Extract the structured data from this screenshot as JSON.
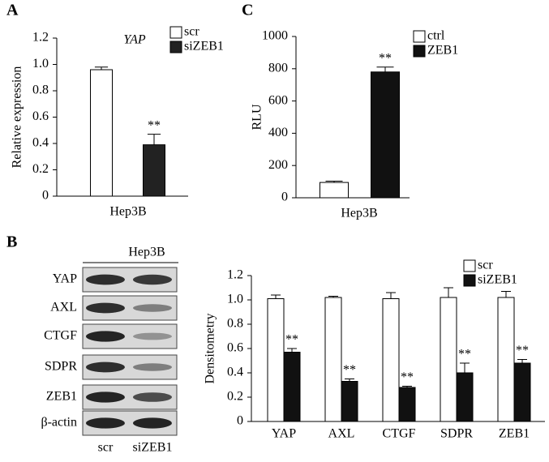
{
  "chart_data": [
    {
      "type": "bar",
      "panel": "A",
      "subtitle": "YAP",
      "ylabel": "Relative expression",
      "categories": [
        "Hep3B"
      ],
      "series": [
        {
          "name": "scr",
          "color": "#ffffff",
          "values": [
            0.96
          ],
          "errors": [
            0.02
          ]
        },
        {
          "name": "siZEB1",
          "color": "#222222",
          "values": [
            0.39
          ],
          "errors": [
            0.08
          ],
          "significance": [
            "**"
          ]
        }
      ],
      "ylim": [
        0,
        1.2
      ],
      "yticks": [
        0,
        0.2,
        0.4,
        0.6,
        0.8,
        {
          "value": 1,
          "label": "1.0"
        },
        1.2
      ]
    },
    {
      "type": "bar",
      "panel": "C",
      "ylabel": "RLU",
      "categories": [
        "Hep3B"
      ],
      "series": [
        {
          "name": "ctrl",
          "color": "#ffffff",
          "values": [
            95
          ],
          "errors": [
            8
          ]
        },
        {
          "name": "ZEB1",
          "color": "#111111",
          "values": [
            780
          ],
          "errors": [
            30
          ],
          "significance": [
            "**"
          ]
        }
      ],
      "ylim": [
        0,
        1000
      ],
      "yticks": [
        0,
        200,
        400,
        600,
        800,
        1000
      ]
    },
    {
      "type": "bar",
      "ylabel": "Densitometry",
      "categories": [
        "YAP",
        "AXL",
        "CTGF",
        "SDPR",
        "ZEB1"
      ],
      "series": [
        {
          "name": "scr",
          "color": "#ffffff",
          "values": [
            1.01,
            1.02,
            1.01,
            1.02,
            1.02
          ],
          "errors": [
            0.03,
            0.01,
            0.05,
            0.08,
            0.05
          ]
        },
        {
          "name": "siZEB1",
          "color": "#111111",
          "values": [
            0.57,
            0.33,
            0.28,
            0.4,
            0.48
          ],
          "errors": [
            0.03,
            0.02,
            0.01,
            0.08,
            0.03
          ],
          "significance": [
            "**",
            "**",
            "**",
            "**",
            "**"
          ]
        }
      ],
      "ylim": [
        0,
        1.2
      ],
      "yticks": [
        0,
        0.2,
        0.4,
        0.6,
        0.8,
        {
          "value": 1,
          "label": "1.0"
        },
        1.2
      ]
    }
  ],
  "blot": {
    "panel": "B",
    "title": "Hep3B",
    "rows": [
      "YAP",
      "AXL",
      "CTGF",
      "SDPR",
      "ZEB1",
      "β-actin"
    ],
    "lanes": [
      "scr",
      "siZEB1"
    ]
  }
}
